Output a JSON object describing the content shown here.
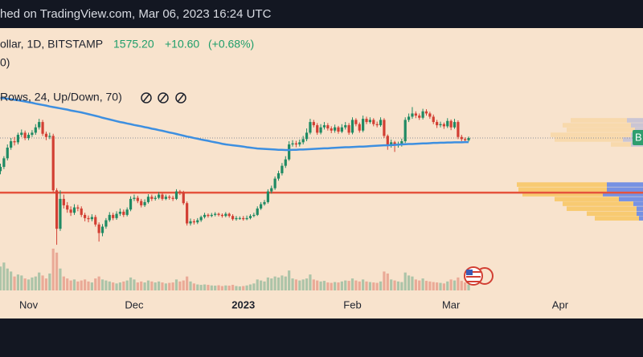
{
  "chart_data": {
    "type": "candlestick",
    "title": "hed on TradingView.com, Mar 06, 2023 16:24 UTC",
    "legend": {
      "symbol": "ollar, 1D, BITSTAMP",
      "price": "1575.20",
      "change": "+10.60",
      "change_pct": "(+0.68%)",
      "volume_label": "0)",
      "profile_label": "Rows, 24, Up/Down, 70)"
    },
    "price_tag": "B",
    "categories": [
      null,
      null,
      null,
      null,
      null,
      null,
      null,
      null,
      "Nov",
      null,
      null,
      null,
      null,
      null,
      null,
      null,
      null,
      null,
      null,
      null,
      null,
      null,
      null,
      null,
      null,
      null,
      null,
      null,
      null,
      null,
      null,
      null,
      null,
      null,
      null,
      null,
      null,
      null,
      "Dec",
      null,
      null,
      null,
      null,
      null,
      null,
      null,
      null,
      null,
      null,
      null,
      null,
      null,
      null,
      null,
      null,
      null,
      null,
      null,
      null,
      null,
      null,
      null,
      null,
      null,
      null,
      null,
      null,
      null,
      null,
      "2023",
      null,
      null,
      null,
      null,
      null,
      null,
      null,
      null,
      null,
      null,
      null,
      null,
      null,
      null,
      null,
      null,
      null,
      null,
      null,
      null,
      null,
      null,
      null,
      null,
      null,
      null,
      null,
      null,
      null,
      null,
      "Feb",
      null,
      null,
      null,
      null,
      null,
      null,
      null,
      null,
      null,
      null,
      null,
      null,
      null,
      null,
      null,
      null,
      null,
      null,
      null,
      null,
      null,
      null,
      null,
      null,
      null,
      null,
      null,
      "Mar",
      null,
      null,
      null,
      null,
      null,
      null,
      null,
      null,
      null,
      null,
      null,
      null,
      null,
      null,
      null,
      null,
      null,
      null,
      null,
      null,
      null,
      null,
      null,
      null,
      null,
      null,
      null,
      null,
      null,
      null,
      "Apr"
    ],
    "open": [
      1420,
      1440,
      1480,
      1530,
      1560,
      1555,
      1590,
      1600,
      1575,
      1590,
      1600,
      1625,
      1650,
      1595,
      1580,
      1585,
      1330,
      1150,
      1290,
      1260,
      1240,
      1225,
      1250,
      1245,
      1215,
      1200,
      1195,
      1205,
      1170,
      1130,
      1160,
      1190,
      1215,
      1200,
      1220,
      1230,
      1215,
      1240,
      1290,
      1295,
      1280,
      1260,
      1275,
      1300,
      1290,
      1295,
      1310,
      1290,
      1300,
      1295,
      1290,
      1325,
      1320,
      1270,
      1175,
      1185,
      1180,
      1190,
      1205,
      1215,
      1210,
      1215,
      1220,
      1215,
      1210,
      1220,
      1210,
      1195,
      1200,
      1200,
      1195,
      1200,
      1210,
      1215,
      1245,
      1265,
      1275,
      1325,
      1340,
      1385,
      1410,
      1445,
      1475,
      1545,
      1550,
      1545,
      1555,
      1570,
      1600,
      1650,
      1635,
      1600,
      1625,
      1635,
      1620,
      1610,
      1625,
      1605,
      1625,
      1635,
      1600,
      1660,
      1640,
      1610,
      1665,
      1650,
      1660,
      1640,
      1635,
      1660,
      1585,
      1545,
      1555,
      1540,
      1545,
      1560,
      1660,
      1675,
      1690,
      1680,
      1670,
      1700,
      1690,
      1675,
      1650,
      1635,
      1640,
      1630,
      1655,
      1625,
      1650,
      1580,
      1570,
      1564.6,
      null,
      null,
      null,
      null,
      null,
      null,
      null,
      null,
      null,
      null,
      null,
      null,
      null,
      null,
      null,
      null,
      null,
      null,
      null,
      null,
      null,
      null,
      null,
      null,
      null,
      null
    ],
    "high": [
      1455,
      1490,
      1545,
      1575,
      1580,
      1600,
      1615,
      1610,
      1600,
      1612,
      1640,
      1665,
      1660,
      1605,
      1600,
      1595,
      1340,
      1330,
      1310,
      1275,
      1255,
      1265,
      1262,
      1255,
      1225,
      1212,
      1218,
      1215,
      1180,
      1172,
      1200,
      1228,
      1225,
      1232,
      1245,
      1240,
      1250,
      1302,
      1310,
      1305,
      1290,
      1288,
      1312,
      1310,
      1305,
      1322,
      1318,
      1310,
      1308,
      1305,
      1335,
      1332,
      1328,
      1278,
      1198,
      1195,
      1200,
      1212,
      1225,
      1222,
      1224,
      1228,
      1226,
      1222,
      1228,
      1226,
      1218,
      1210,
      1208,
      1210,
      1212,
      1218,
      1225,
      1255,
      1275,
      1285,
      1335,
      1352,
      1395,
      1422,
      1458,
      1490,
      1560,
      1565,
      1562,
      1568,
      1585,
      1620,
      1665,
      1660,
      1645,
      1640,
      1650,
      1645,
      1630,
      1638,
      1632,
      1640,
      1650,
      1645,
      1672,
      1668,
      1648,
      1680,
      1675,
      1672,
      1668,
      1652,
      1672,
      1668,
      1592,
      1568,
      1562,
      1558,
      1572,
      1672,
      1690,
      1720,
      1700,
      1690,
      1712,
      1710,
      1698,
      1685,
      1660,
      1652,
      1648,
      1668,
      1662,
      1665,
      1658,
      1590,
      1578,
      1582,
      null,
      null,
      null,
      null,
      null,
      null,
      null,
      null,
      null,
      null,
      null,
      null,
      null,
      null,
      null,
      null,
      null,
      null,
      null,
      null,
      null,
      null,
      null,
      null,
      null,
      null
    ],
    "low": [
      1405,
      1430,
      1470,
      1520,
      1540,
      1545,
      1580,
      1565,
      1565,
      1580,
      1590,
      1615,
      1585,
      1565,
      1570,
      1320,
      1075,
      1140,
      1245,
      1225,
      1210,
      1215,
      1232,
      1205,
      1185,
      1180,
      1185,
      1160,
      1090,
      1115,
      1150,
      1182,
      1190,
      1192,
      1210,
      1205,
      1208,
      1232,
      1280,
      1270,
      1250,
      1252,
      1268,
      1280,
      1282,
      1288,
      1282,
      1284,
      1286,
      1280,
      1285,
      1308,
      1262,
      1165,
      1165,
      1170,
      1172,
      1182,
      1198,
      1202,
      1204,
      1208,
      1208,
      1202,
      1204,
      1202,
      1188,
      1188,
      1192,
      1188,
      1190,
      1194,
      1204,
      1210,
      1238,
      1258,
      1268,
      1315,
      1332,
      1375,
      1400,
      1435,
      1468,
      1535,
      1532,
      1535,
      1545,
      1560,
      1592,
      1625,
      1590,
      1592,
      1615,
      1610,
      1598,
      1600,
      1595,
      1598,
      1615,
      1590,
      1592,
      1630,
      1600,
      1602,
      1640,
      1642,
      1630,
      1625,
      1628,
      1575,
      1520,
      1530,
      1510,
      1530,
      1535,
      1552,
      1650,
      1665,
      1668,
      1660,
      1662,
      1680,
      1665,
      1640,
      1622,
      1625,
      1618,
      1622,
      1612,
      1618,
      1570,
      1560,
      1555,
      1558,
      null,
      null,
      null,
      null,
      null,
      null,
      null,
      null,
      null,
      null,
      null,
      null,
      null,
      null,
      null,
      null,
      null,
      null,
      null,
      null,
      null,
      null,
      null,
      null,
      null,
      null
    ],
    "close": [
      1440,
      1480,
      1530,
      1560,
      1555,
      1590,
      1600,
      1575,
      1590,
      1600,
      1625,
      1650,
      1595,
      1580,
      1585,
      1330,
      1150,
      1290,
      1260,
      1240,
      1225,
      1250,
      1245,
      1215,
      1200,
      1195,
      1205,
      1170,
      1130,
      1160,
      1190,
      1215,
      1200,
      1220,
      1230,
      1215,
      1240,
      1290,
      1295,
      1280,
      1260,
      1275,
      1300,
      1290,
      1295,
      1310,
      1290,
      1300,
      1295,
      1290,
      1325,
      1320,
      1270,
      1175,
      1185,
      1180,
      1190,
      1205,
      1215,
      1210,
      1215,
      1220,
      1215,
      1210,
      1220,
      1210,
      1195,
      1200,
      1200,
      1195,
      1200,
      1210,
      1215,
      1245,
      1265,
      1275,
      1325,
      1340,
      1385,
      1410,
      1445,
      1475,
      1545,
      1550,
      1545,
      1555,
      1570,
      1600,
      1650,
      1635,
      1600,
      1625,
      1635,
      1620,
      1610,
      1625,
      1605,
      1625,
      1635,
      1600,
      1660,
      1640,
      1610,
      1665,
      1650,
      1660,
      1640,
      1635,
      1660,
      1585,
      1545,
      1555,
      1540,
      1545,
      1560,
      1660,
      1675,
      1690,
      1680,
      1670,
      1700,
      1690,
      1675,
      1650,
      1635,
      1640,
      1630,
      1655,
      1625,
      1650,
      1580,
      1570,
      1564.6,
      1575.2,
      null,
      null,
      null,
      null,
      null,
      null,
      null,
      null,
      null,
      null,
      null,
      null,
      null,
      null,
      null,
      null,
      null,
      null,
      null,
      null,
      null,
      null,
      null,
      null,
      null,
      null
    ],
    "volume": [
      120000,
      140000,
      110000,
      95000,
      70000,
      80000,
      75000,
      60000,
      55000,
      65000,
      70000,
      90000,
      75000,
      60000,
      85000,
      210000,
      190000,
      110000,
      70000,
      60000,
      50000,
      55000,
      45000,
      50000,
      55000,
      45000,
      40000,
      60000,
      70000,
      55000,
      50000,
      45000,
      40000,
      35000,
      40000,
      45000,
      50000,
      65000,
      55000,
      40000,
      45000,
      40000,
      50000,
      45000,
      40000,
      45000,
      40000,
      35000,
      38000,
      40000,
      55000,
      45000,
      50000,
      70000,
      45000,
      35000,
      30000,
      28000,
      30000,
      28000,
      25000,
      24000,
      26000,
      22000,
      25000,
      24000,
      28000,
      22000,
      20000,
      22000,
      25000,
      30000,
      35000,
      55000,
      50000,
      45000,
      65000,
      60000,
      70000,
      65000,
      75000,
      70000,
      100000,
      60000,
      55000,
      50000,
      55000,
      60000,
      80000,
      55000,
      50000,
      45000,
      48000,
      40000,
      38000,
      42000,
      40000,
      45000,
      50000,
      48000,
      60000,
      50000,
      45000,
      55000,
      45000,
      42000,
      40000,
      38000,
      45000,
      95000,
      85000,
      55000,
      50000,
      45000,
      42000,
      90000,
      75000,
      70000,
      55000,
      50000,
      60000,
      48000,
      45000,
      42000,
      40000,
      38000,
      35000,
      45000,
      55000,
      50000,
      65000,
      48000,
      40000,
      30000,
      null,
      null,
      null,
      null,
      null,
      null,
      null,
      null,
      null,
      null,
      null,
      null,
      null,
      null,
      null,
      null,
      null,
      null,
      null,
      null,
      null,
      null,
      null,
      null,
      null,
      null
    ],
    "ma": [
      1763,
      1761,
      1759,
      1757,
      1754,
      1752,
      1749,
      1746,
      1743,
      1740,
      1736,
      1733,
      1730,
      1727,
      1723,
      1720,
      1717,
      1714,
      1711,
      1708,
      1704,
      1701,
      1698,
      1695,
      1691,
      1687,
      1683,
      1679,
      1675,
      1670,
      1666,
      1662,
      1658,
      1654,
      1650,
      1647,
      1643,
      1640,
      1636,
      1633,
      1630,
      1626,
      1623,
      1619,
      1616,
      1612,
      1609,
      1605,
      1601,
      1598,
      1594,
      1590,
      1586,
      1582,
      1579,
      1575,
      1572,
      1568,
      1565,
      1562,
      1558,
      1555,
      1552,
      1548,
      1545,
      1543,
      1541,
      1539,
      1537,
      1535,
      1532,
      1530,
      1528,
      1526,
      1525,
      1524,
      1523,
      1522,
      1521,
      1520,
      1520,
      1519,
      1519,
      1520,
      1520,
      1521,
      1521,
      1522,
      1523,
      1524,
      1525,
      1526,
      1527,
      1527,
      1528,
      1529,
      1530,
      1531,
      1532,
      1532,
      1533,
      1534,
      1535,
      1535,
      1536,
      1537,
      1538,
      1539,
      1540,
      1541,
      1541,
      1542,
      1543,
      1544,
      1545,
      1546,
      1547,
      1547,
      1548,
      1549,
      1550,
      1550,
      1551,
      1552,
      1552,
      1553,
      1553,
      1554,
      1554,
      1555,
      1555,
      1555,
      1556,
      1556,
      null,
      null,
      null,
      null,
      null,
      null,
      null,
      null,
      null,
      null,
      null,
      null,
      null,
      null,
      null,
      null,
      null,
      null,
      null,
      null,
      null,
      null,
      null,
      null,
      null,
      null
    ],
    "ylim": [
      850,
      2090
    ],
    "y2lim": [
      0,
      250000
    ],
    "up_color": "#1f8a63",
    "down_color": "#d23f33",
    "ma_color": "#3d8fe0",
    "hlines": [
      {
        "value": 1319,
        "color": "#e5533d"
      }
    ],
    "profile": {
      "lim": [
        0,
        1600000
      ],
      "up_color": "#5f82e6",
      "down_color": "#f8c560",
      "rows": [
        {
          "price": 1658,
          "up": 200000,
          "down": 700000,
          "in_value_area": false
        },
        {
          "price": 1635,
          "up": 150000,
          "down": 850000,
          "in_value_area": false
        },
        {
          "price": 1613,
          "up": 100000,
          "down": 850000,
          "in_value_area": false
        },
        {
          "price": 1590,
          "up": 150000,
          "down": 1000000,
          "in_value_area": false
        },
        {
          "price": 1568,
          "up": 250000,
          "down": 850000,
          "in_value_area": false
        },
        {
          "price": 1545,
          "up": 150000,
          "down": 250000,
          "in_value_area": false
        },
        {
          "price": 1357,
          "up": 450000,
          "down": 1120000,
          "in_value_area": true
        },
        {
          "price": 1334,
          "up": 450000,
          "down": 1100000,
          "in_value_area": true
        },
        {
          "price": 1312,
          "up": 500000,
          "down": 1000000,
          "in_value_area": true
        },
        {
          "price": 1289,
          "up": 300000,
          "down": 800000,
          "in_value_area": true
        },
        {
          "price": 1267,
          "up": 120000,
          "down": 880000,
          "in_value_area": true
        },
        {
          "price": 1244,
          "up": 80000,
          "down": 870000,
          "in_value_area": true
        },
        {
          "price": 1221,
          "up": 80000,
          "down": 620000,
          "in_value_area": true
        },
        {
          "price": 1199,
          "up": 50000,
          "down": 550000,
          "in_value_area": true
        }
      ]
    }
  }
}
